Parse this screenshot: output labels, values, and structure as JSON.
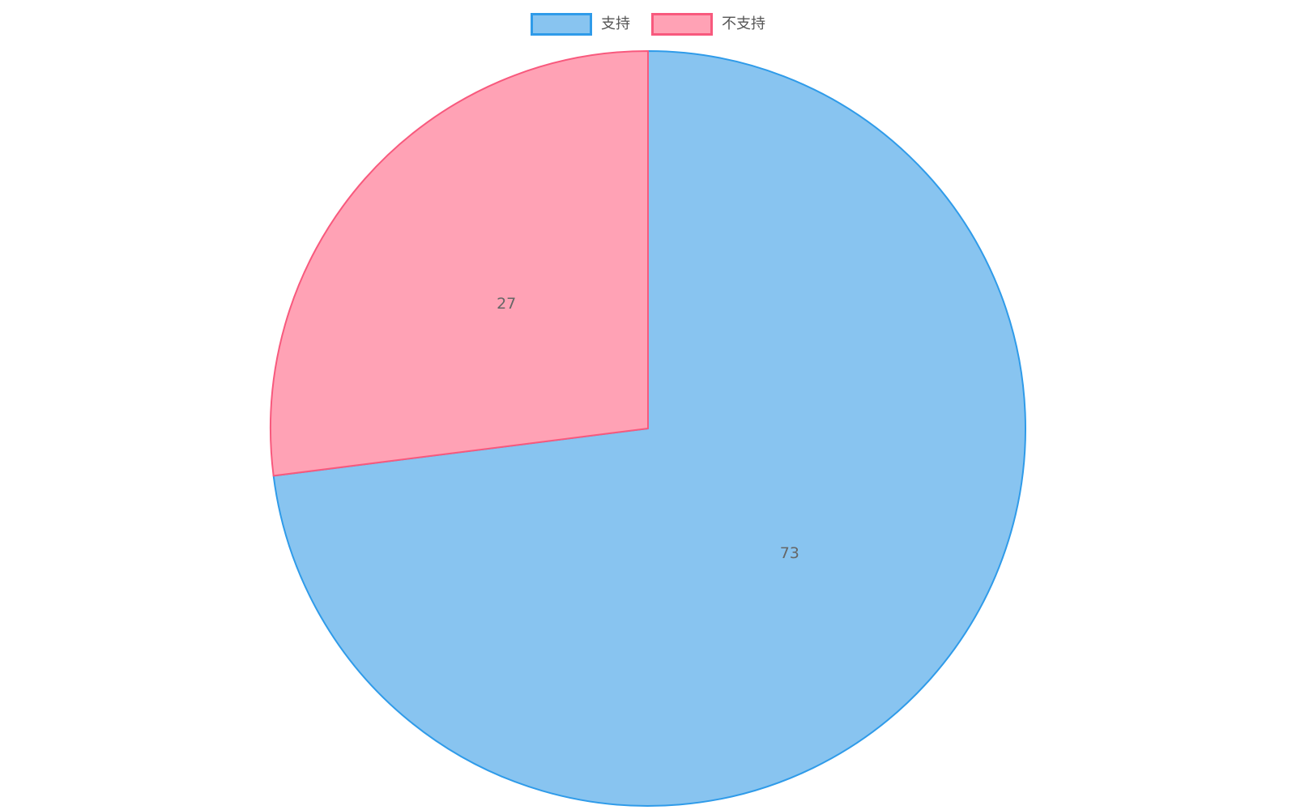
{
  "legend": {
    "position": "top",
    "items": [
      {
        "label": "支持"
      },
      {
        "label": "不支持"
      }
    ]
  },
  "chart_data": {
    "type": "pie",
    "title": "",
    "series": [
      {
        "name": "支持",
        "value": 73,
        "fill": "#88C4F0",
        "border": "#2F9BE9"
      },
      {
        "name": "不支持",
        "value": 27,
        "fill": "#FFA2B5",
        "border": "#F8597D"
      }
    ],
    "total": 100,
    "start_angle_deg": 0,
    "direction": "clockwise",
    "legend_position": "top",
    "label_color": "#666666",
    "label_font_size": 19,
    "stroke_width": 2,
    "center": {
      "x": 800,
      "y": 529
    },
    "radius": 466,
    "label_radius_ratio": 0.5
  }
}
